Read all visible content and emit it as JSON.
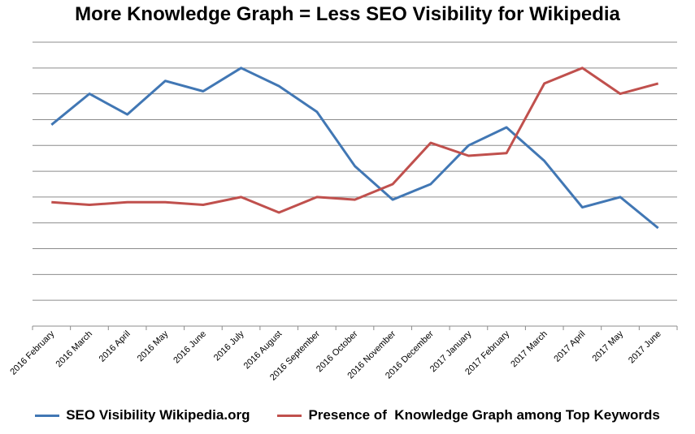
{
  "chart_data": {
    "type": "line",
    "title": "More Knowledge Graph = Less SEO Visibility for Wikipedia",
    "xlabel": "",
    "ylabel": "",
    "categories": [
      "2016 February",
      "2016 March",
      "2016 April",
      "2016 May",
      "2016 June",
      "2016 July",
      "2016 August",
      "2016 September",
      "2016 October",
      "2016 November",
      "2016 December",
      "2017 January",
      "2017 February",
      "2017 March",
      "2017 April",
      "2017 May",
      "2017 June"
    ],
    "ylim": [
      0,
      11
    ],
    "grid": true,
    "y_tick_labels_shown": false,
    "legend_position": "bottom",
    "series": [
      {
        "name": "SEO Visibility Wikipedia.org",
        "color": "#4177B4",
        "values": [
          7.8,
          9.0,
          8.2,
          9.5,
          9.1,
          10.0,
          9.3,
          8.3,
          6.2,
          4.9,
          5.5,
          7.0,
          7.7,
          6.4,
          4.6,
          5.0,
          3.8
        ]
      },
      {
        "name": "Presence of  Knowledge Graph among Top Keywords",
        "color": "#C0504D",
        "values": [
          4.8,
          4.7,
          4.8,
          4.8,
          4.7,
          5.0,
          4.4,
          5.0,
          4.9,
          5.5,
          7.1,
          6.6,
          6.7,
          9.4,
          10.0,
          9.0,
          9.4
        ]
      }
    ]
  }
}
